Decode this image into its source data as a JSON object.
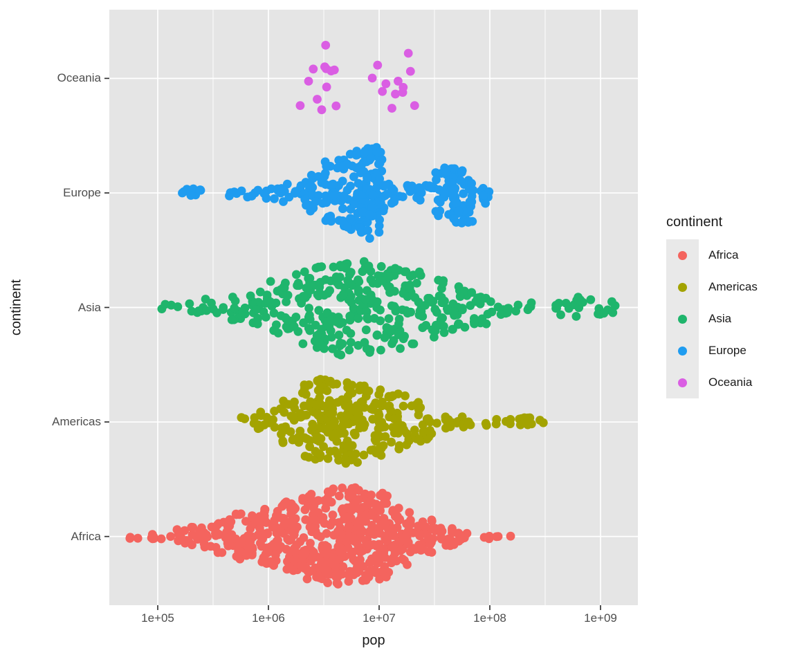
{
  "chart_data": {
    "type": "beeswarm",
    "xlabel": "pop",
    "ylabel": "continent",
    "x_scale": "log10",
    "x_tick_labels": [
      "1e+05",
      "1e+06",
      "1e+07",
      "1e+08",
      "1e+09"
    ],
    "x_tick_log10": [
      5,
      6,
      7,
      8,
      9
    ],
    "x_minor_log10": [
      5.5,
      6.5,
      7.5,
      8.5
    ],
    "x_range_log10": [
      4.75,
      9.15
    ],
    "categories_bottom_to_top": [
      "Africa",
      "Americas",
      "Asia",
      "Europe",
      "Oceania"
    ],
    "legend": {
      "title": "continent",
      "entries": [
        {
          "label": "Africa",
          "color": "#F4645E"
        },
        {
          "label": "Americas",
          "color": "#A3A300"
        },
        {
          "label": "Asia",
          "color": "#1FB56C"
        },
        {
          "label": "Europe",
          "color": "#1F9CF0"
        },
        {
          "label": "Oceania",
          "color": "#DA5EE3"
        }
      ]
    },
    "colors": {
      "panel_bg": "#E5E5E5",
      "grid": "#FFFFFF",
      "tick_mark": "#333333",
      "tick_text": "#4d4d4d",
      "axis_text": "#1a1a1a",
      "legend_key_bg": "#E9E9E9"
    },
    "series": [
      {
        "name": "Africa",
        "color": "#F4645E",
        "seed": 11,
        "max_spread": 72,
        "bin_width_log10": 0.19,
        "bins": [
          [
            4.8,
            3
          ],
          [
            5.0,
            6
          ],
          [
            5.2,
            12
          ],
          [
            5.4,
            18
          ],
          [
            5.6,
            28
          ],
          [
            5.8,
            38
          ],
          [
            6.0,
            48
          ],
          [
            6.2,
            58
          ],
          [
            6.4,
            70
          ],
          [
            6.6,
            80
          ],
          [
            6.8,
            82
          ],
          [
            7.0,
            72
          ],
          [
            7.2,
            50
          ],
          [
            7.4,
            28
          ],
          [
            7.6,
            16
          ],
          [
            7.8,
            8
          ],
          [
            8.0,
            4
          ],
          [
            8.13,
            2
          ]
        ]
      },
      {
        "name": "Americas",
        "color": "#A3A300",
        "seed": 22,
        "max_spread": 64,
        "bin_width_log10": 0.19,
        "bins": [
          [
            5.85,
            5
          ],
          [
            6.0,
            12
          ],
          [
            6.2,
            24
          ],
          [
            6.4,
            40
          ],
          [
            6.5,
            46
          ],
          [
            6.65,
            44
          ],
          [
            6.8,
            42
          ],
          [
            7.0,
            36
          ],
          [
            7.2,
            30
          ],
          [
            7.4,
            22
          ],
          [
            7.55,
            8
          ],
          [
            7.7,
            6
          ],
          [
            7.9,
            5
          ],
          [
            8.1,
            4
          ],
          [
            8.25,
            5
          ],
          [
            8.4,
            5
          ],
          [
            8.48,
            2
          ]
        ]
      },
      {
        "name": "Asia",
        "color": "#1FB56C",
        "seed": 33,
        "max_spread": 70,
        "bin_width_log10": 0.19,
        "bins": [
          [
            5.1,
            4
          ],
          [
            5.3,
            5
          ],
          [
            5.5,
            8
          ],
          [
            5.7,
            12
          ],
          [
            5.9,
            16
          ],
          [
            6.1,
            24
          ],
          [
            6.3,
            32
          ],
          [
            6.5,
            40
          ],
          [
            6.7,
            42
          ],
          [
            6.9,
            40
          ],
          [
            7.1,
            38
          ],
          [
            7.3,
            32
          ],
          [
            7.5,
            26
          ],
          [
            7.7,
            20
          ],
          [
            7.9,
            15
          ],
          [
            8.1,
            10
          ],
          [
            8.3,
            6
          ],
          [
            8.65,
            7
          ],
          [
            8.85,
            9
          ],
          [
            9.05,
            8
          ]
        ]
      },
      {
        "name": "Europe",
        "color": "#1F9CF0",
        "seed": 44,
        "max_spread": 66,
        "bin_width_log10": 0.19,
        "bins": [
          [
            5.25,
            6
          ],
          [
            5.38,
            4
          ],
          [
            5.66,
            4
          ],
          [
            5.82,
            6
          ],
          [
            6.0,
            8
          ],
          [
            6.2,
            12
          ],
          [
            6.4,
            24
          ],
          [
            6.6,
            44
          ],
          [
            6.8,
            56
          ],
          [
            6.95,
            60
          ],
          [
            7.1,
            14
          ],
          [
            7.3,
            10
          ],
          [
            7.45,
            10
          ],
          [
            7.6,
            34
          ],
          [
            7.75,
            40
          ],
          [
            7.9,
            14
          ]
        ]
      },
      {
        "name": "Oceania",
        "color": "#DA5EE3",
        "seed": 55,
        "max_spread": 50,
        "points_log10": [
          6.3,
          6.348,
          6.396,
          6.436,
          6.467,
          6.5,
          6.507,
          6.514,
          6.526,
          6.56,
          6.592,
          6.614,
          6.939,
          6.987,
          7.033,
          7.075,
          7.12,
          7.148,
          7.181,
          7.211,
          7.232,
          7.257,
          7.282,
          7.31
        ]
      }
    ]
  }
}
